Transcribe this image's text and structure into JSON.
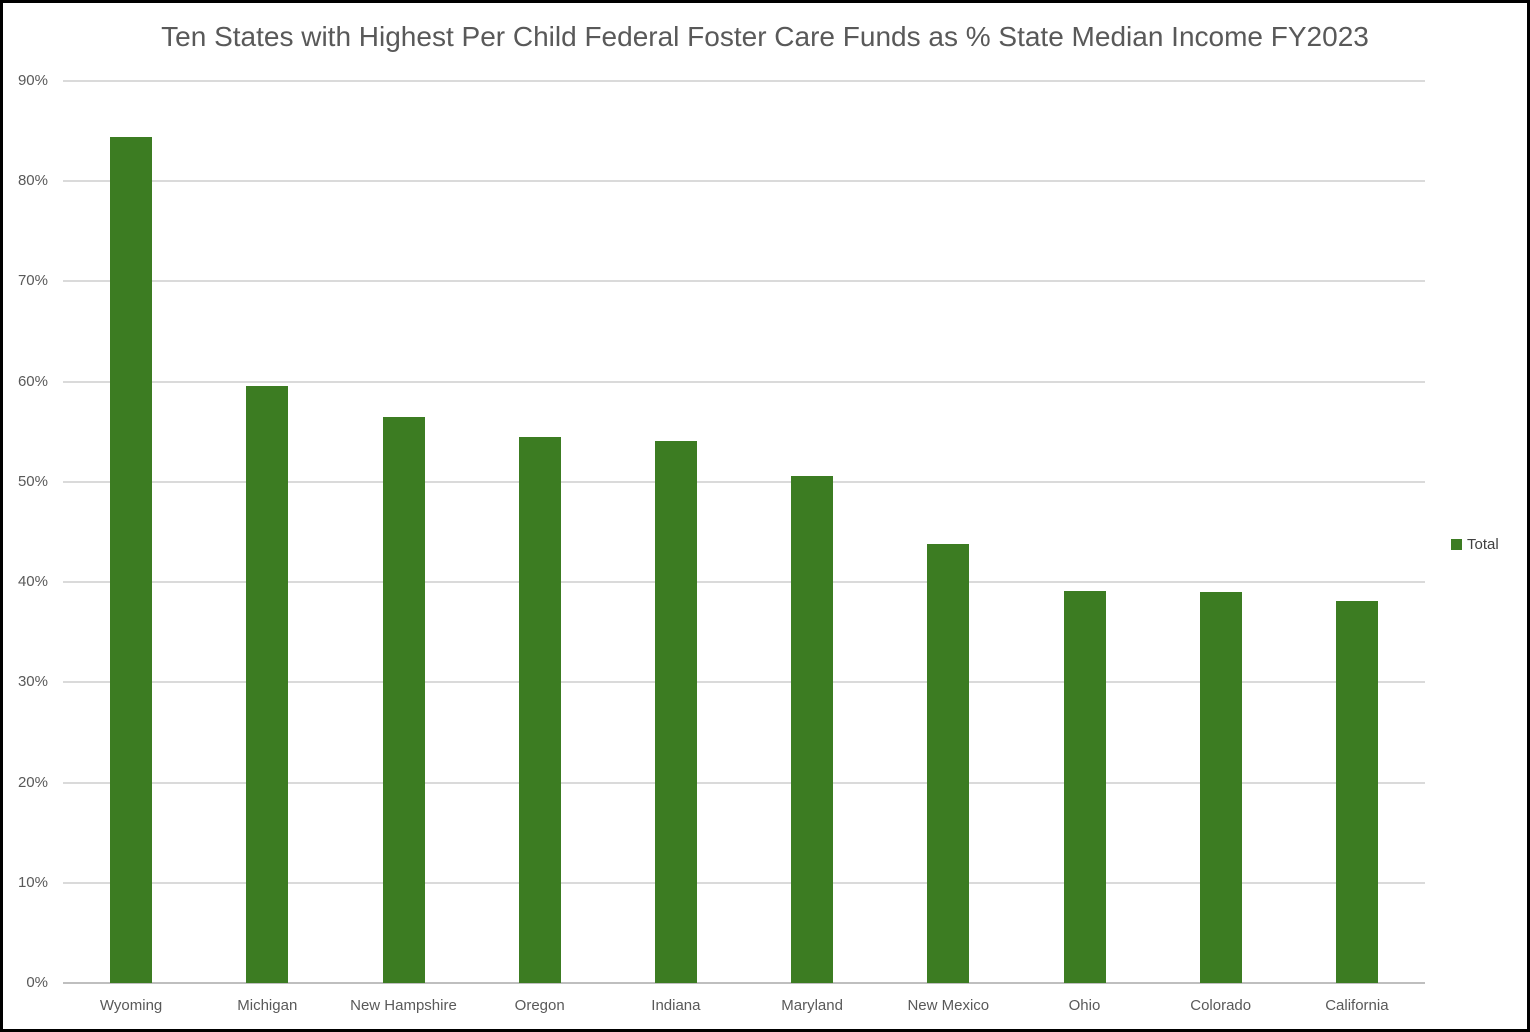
{
  "chart_data": {
    "type": "bar",
    "title": "Ten States with Highest Per Child Federal Foster Care Funds as % State Median Income FY2023",
    "categories": [
      "Wyoming",
      "Michigan",
      "New Hampshire",
      "Oregon",
      "Indiana",
      "Maryland",
      "New Mexico",
      "Ohio",
      "Colorado",
      "California"
    ],
    "series": [
      {
        "name": "Total",
        "values": [
          84.4,
          59.6,
          56.5,
          54.5,
          54.1,
          50.6,
          43.8,
          39.1,
          39.0,
          38.1
        ]
      }
    ],
    "xlabel": "",
    "ylabel": "",
    "ylim": [
      0,
      90
    ],
    "ytick_step": 10,
    "ytick_labels": [
      "0%",
      "10%",
      "20%",
      "30%",
      "40%",
      "50%",
      "60%",
      "70%",
      "80%",
      "90%"
    ],
    "grid": true,
    "legend_position": "right",
    "colors": {
      "bar": "#3c7c22",
      "gridline": "#dadada",
      "axis_line": "#bfbfbf",
      "tick_text": "#595959",
      "title_text": "#595959",
      "legend_text": "#404040"
    }
  },
  "legend": {
    "entries": [
      {
        "label": "Total",
        "color": "#3c7c22"
      }
    ]
  }
}
